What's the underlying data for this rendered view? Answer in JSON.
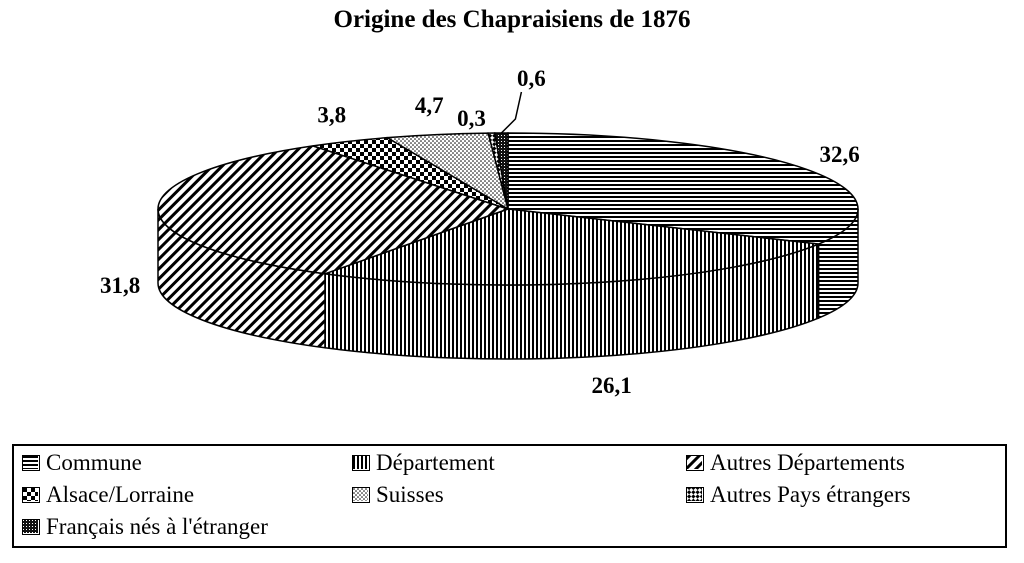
{
  "chart_data": {
    "type": "pie",
    "title": "Origine des Chapraisiens de 1876",
    "slices": [
      {
        "name": "Commune",
        "value": 32.6,
        "label": "32,6",
        "pattern": "horizontal-lines"
      },
      {
        "name": "Département",
        "value": 26.1,
        "label": "26,1",
        "pattern": "vertical-lines"
      },
      {
        "name": "Autres Départements",
        "value": 31.8,
        "label": "31,8",
        "pattern": "diagonal-lines"
      },
      {
        "name": "Alsace/Lorraine",
        "value": 3.8,
        "label": "3,8",
        "pattern": "checker"
      },
      {
        "name": "Suisses",
        "value": 4.7,
        "label": "4,7",
        "pattern": "dots"
      },
      {
        "name": "Autres Pays étrangers",
        "value": 0.3,
        "label": "0,3",
        "pattern": "diamond-checker"
      },
      {
        "name": "Français nés à l'étranger",
        "value": 0.6,
        "label": "0,6",
        "pattern": "solid-dark"
      }
    ],
    "legend_position": "bottom",
    "style": "3d-pie-black-and-white"
  }
}
